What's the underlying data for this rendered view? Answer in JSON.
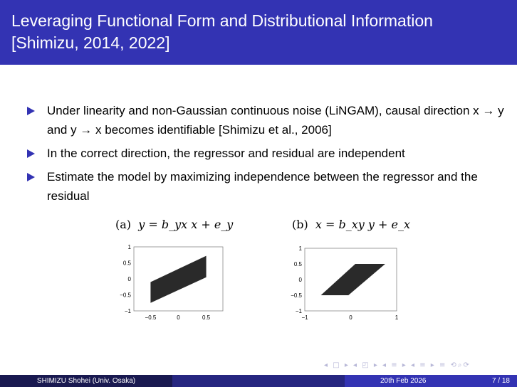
{
  "header": {
    "title_line1": "Leveraging Functional Form and Distributional Information",
    "title_line2": "[Shimizu, 2014, 2022]"
  },
  "bullets": [
    "Under linearity and non-Gaussian continuous noise (LiNGAM), causal direction x → y and y → x becomes identifiable [Shimizu et al., 2006]",
    "In the correct direction, the regressor and residual are independent",
    "Estimate the model by maximizing independence between the regressor and the residual"
  ],
  "figures": [
    {
      "label": "(a)",
      "equation": "y = b_yx x + e_y",
      "xticks": [
        "−0.5",
        "0",
        "0.5"
      ],
      "yticks": [
        "1",
        "0.5",
        "0",
        "−0.5",
        "−1"
      ],
      "xlim": [
        -0.8,
        0.8
      ],
      "ylim": [
        -1,
        1
      ],
      "region": [
        [
          -0.5,
          -0.75
        ],
        [
          0.5,
          0.05
        ],
        [
          0.5,
          0.72
        ],
        [
          -0.5,
          -0.1
        ]
      ]
    },
    {
      "label": "(b)",
      "equation": "x = b_xy y + e_x",
      "xticks": [
        "−1",
        "0",
        "1"
      ],
      "yticks": [
        "1",
        "0.5",
        "0",
        "−0.5",
        "−1"
      ],
      "xlim": [
        -1,
        1
      ],
      "ylim": [
        -1,
        1
      ],
      "region": [
        [
          -0.65,
          -0.5
        ],
        [
          -0.05,
          -0.5
        ],
        [
          0.75,
          0.5
        ],
        [
          0.1,
          0.5
        ]
      ]
    }
  ],
  "nav_symbols": "◂ □ ▸ ◂ ◰ ▸ ◂ ≡ ▸ ◂ ≡ ▸   ≡   ⟲⌕⟳",
  "footer": {
    "author": "SHIMIZU Shohei  (Univ. Osaka)",
    "date": "20th Feb 2026",
    "page": "7 / 18"
  },
  "colors": {
    "theme": "#3333b3"
  }
}
